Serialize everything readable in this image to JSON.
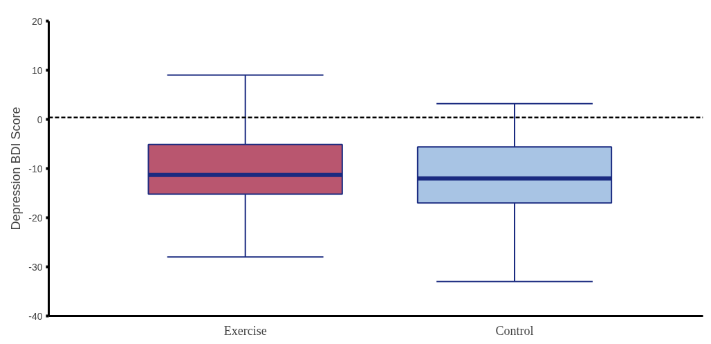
{
  "chart_data": {
    "type": "box",
    "ylabel": "Depression BDI Score",
    "categories": [
      "Exercise",
      "Control"
    ],
    "colors": [
      "#b9566f",
      "#a8c4e4"
    ],
    "boxes": [
      {
        "low": -28,
        "q1": -15.2,
        "median": -11.3,
        "q3": -5.1,
        "high": 9
      },
      {
        "low": -33,
        "q1": -17,
        "median": -12,
        "q3": -5.6,
        "high": 3.2
      }
    ],
    "ylim": [
      -40,
      20
    ],
    "yticks": [
      -40,
      -30,
      -20,
      -10,
      0,
      10,
      20
    ],
    "ref_lines": [
      {
        "axis": "y",
        "value": 0.4,
        "line_style": "dashed",
        "color": "#000000"
      }
    ],
    "grid": false
  }
}
